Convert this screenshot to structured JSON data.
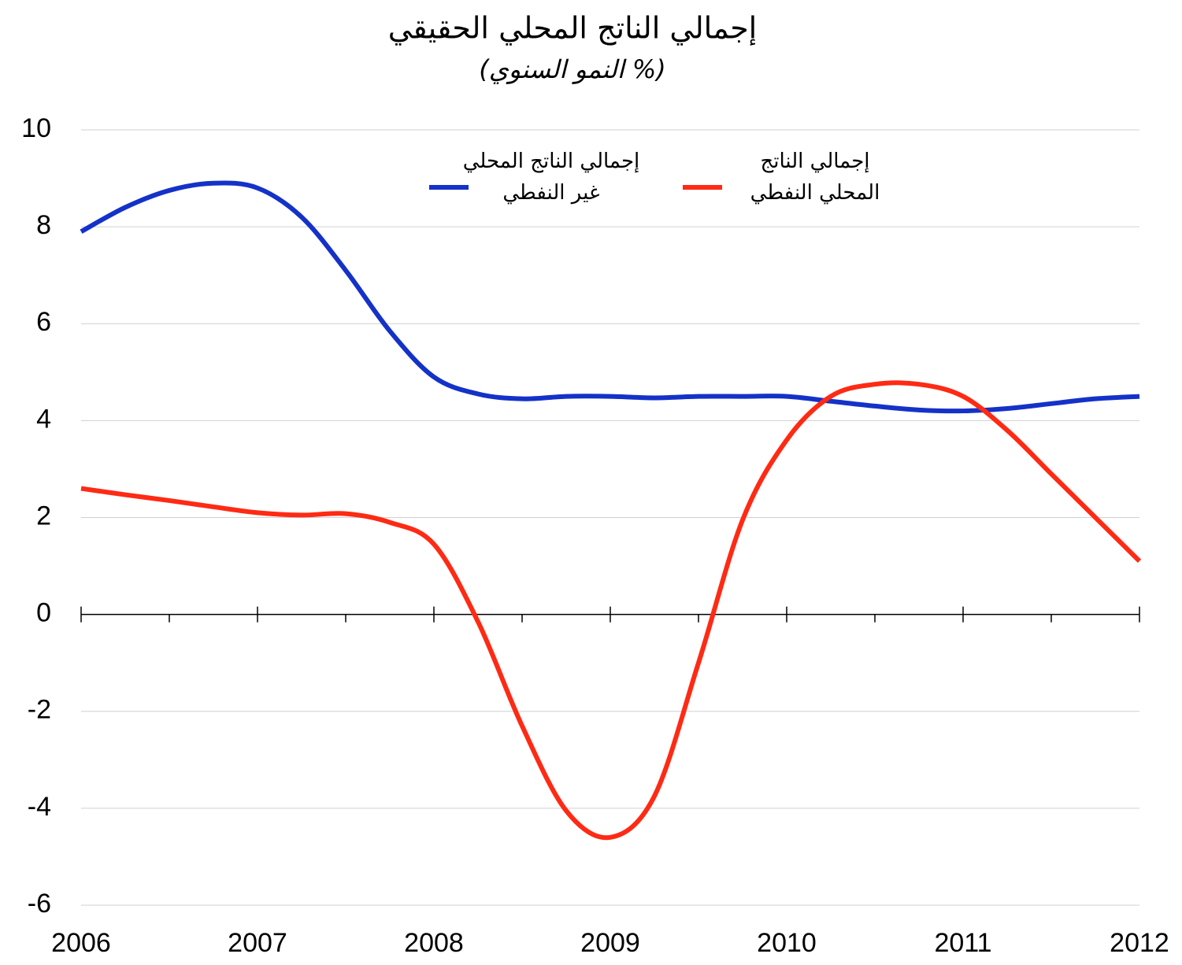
{
  "chart_data": {
    "type": "line",
    "title": "إجمالي الناتج المحلي الحقيقي",
    "subtitle": "(النمو السنوي %)",
    "x": [
      2006,
      2006.25,
      2006.5,
      2006.75,
      2007,
      2007.25,
      2007.5,
      2007.75,
      2008,
      2008.25,
      2008.5,
      2008.75,
      2009,
      2009.25,
      2009.5,
      2009.75,
      2010,
      2010.25,
      2010.5,
      2010.75,
      2011,
      2011.25,
      2011.5,
      2011.75,
      2012
    ],
    "series": [
      {
        "name": "إجمالي الناتج المحلي غير النفطي",
        "color": "#1432c8",
        "values": [
          7.9,
          8.4,
          8.75,
          8.9,
          8.8,
          8.2,
          7.1,
          5.85,
          4.9,
          4.55,
          4.45,
          4.5,
          4.5,
          4.47,
          4.5,
          4.5,
          4.5,
          4.4,
          4.3,
          4.22,
          4.2,
          4.25,
          4.35,
          4.45,
          4.5
        ]
      },
      {
        "name": "إجمالي الناتج المحلي النفطي",
        "color": "#ff2a14",
        "values": [
          2.6,
          2.47,
          2.35,
          2.22,
          2.1,
          2.05,
          2.08,
          1.9,
          1.45,
          -0.15,
          -2.3,
          -4.05,
          -4.6,
          -3.75,
          -1.0,
          1.95,
          3.6,
          4.5,
          4.75,
          4.75,
          4.5,
          3.8,
          2.9,
          2.0,
          1.1
        ]
      }
    ],
    "xlim": [
      2006,
      2012
    ],
    "xticks": [
      2006,
      2007,
      2008,
      2009,
      2010,
      2011,
      2012
    ],
    "ylim": [
      -6,
      10
    ],
    "yticks": [
      -6,
      -4,
      -2,
      0,
      2,
      4,
      6,
      8,
      10
    ],
    "grid": true
  }
}
